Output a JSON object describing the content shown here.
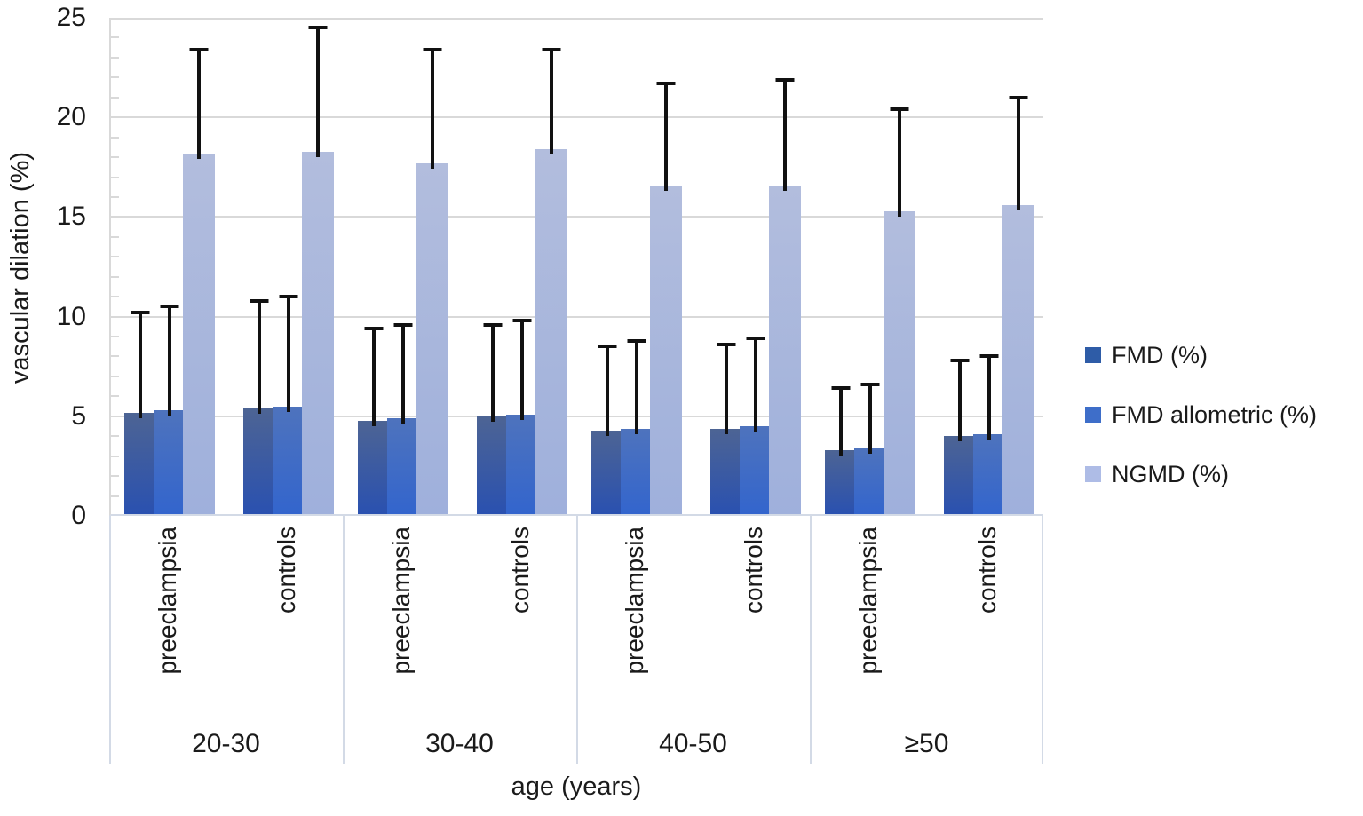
{
  "chart_data": {
    "type": "bar",
    "title": "",
    "ylabel": "vascular dilation (%)",
    "xlabel": "age (years)",
    "ylim": [
      0,
      25
    ],
    "ytick_step": 5,
    "minor_tick_step": 1,
    "grid": true,
    "legend_position": "right",
    "error_bars": "plus-direction, black caps",
    "groups": [
      "20-30",
      "30-40",
      "40-50",
      "≥50"
    ],
    "subgroups": [
      "preeclampsia",
      "controls"
    ],
    "colors": {
      "grid": "#d9d9d9",
      "axis": "#d3dae6",
      "error_bar": "#111111",
      "text": "#1a1a1a"
    },
    "series": [
      {
        "name": "FMD (%)",
        "legend_color": "#2e5ca7",
        "bar_gradient_top": "#4d6494",
        "bar_gradient_bottom": "#2a51b0",
        "values": [
          [
            5.1,
            5.3
          ],
          [
            4.7,
            4.9
          ],
          [
            4.2,
            4.3
          ],
          [
            3.2,
            3.9
          ]
        ],
        "error_up": [
          [
            5.1,
            5.5
          ],
          [
            4.7,
            4.7
          ],
          [
            4.3,
            4.3
          ],
          [
            3.2,
            3.9
          ]
        ]
      },
      {
        "name": "FMD allometric (%)",
        "legend_color": "#3e6ec9",
        "bar_gradient_top": "#4e73bd",
        "bar_gradient_bottom": "#3365cd",
        "values": [
          [
            5.2,
            5.4
          ],
          [
            4.8,
            5.0
          ],
          [
            4.3,
            4.4
          ],
          [
            3.3,
            4.0
          ]
        ],
        "error_up": [
          [
            5.3,
            5.6
          ],
          [
            4.8,
            4.8
          ],
          [
            4.5,
            4.5
          ],
          [
            3.3,
            4.0
          ]
        ]
      },
      {
        "name": "NGMD (%)",
        "legend_color": "#aebce6",
        "bar_gradient_top": "#b2bddd",
        "bar_gradient_bottom": "#9fb0dc",
        "values": [
          [
            18.1,
            18.2
          ],
          [
            17.6,
            18.3
          ],
          [
            16.5,
            16.5
          ],
          [
            15.2,
            15.5
          ]
        ],
        "error_up": [
          [
            5.3,
            6.3
          ],
          [
            5.8,
            5.1
          ],
          [
            5.2,
            5.4
          ],
          [
            5.2,
            5.5
          ]
        ]
      }
    ]
  }
}
